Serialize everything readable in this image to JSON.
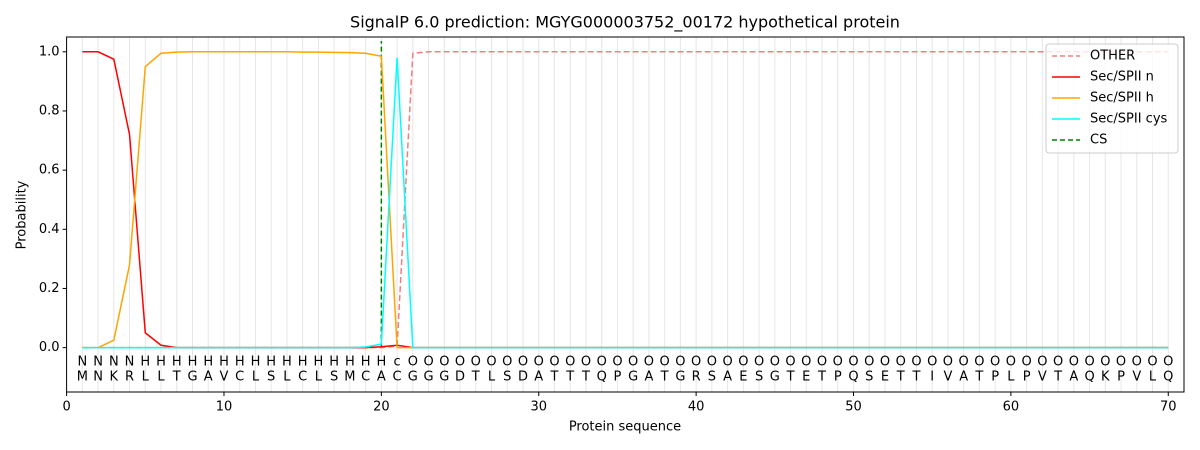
{
  "chart_data": {
    "type": "line",
    "title": "SignalP 6.0 prediction: MGYG000003752_00172 hypothetical protein",
    "x_label": "Protein sequence",
    "y_label": "Probability",
    "x": [
      1,
      2,
      3,
      4,
      5,
      6,
      7,
      8,
      9,
      10,
      11,
      12,
      13,
      14,
      15,
      16,
      17,
      18,
      19,
      20,
      21,
      22,
      23,
      24,
      25,
      26,
      27,
      28,
      29,
      30,
      31,
      32,
      33,
      34,
      35,
      36,
      37,
      38,
      39,
      40,
      41,
      42,
      43,
      44,
      45,
      46,
      47,
      48,
      49,
      50,
      51,
      52,
      53,
      54,
      55,
      56,
      57,
      58,
      59,
      60,
      61,
      62,
      63,
      64,
      65,
      66,
      67,
      68,
      69,
      70
    ],
    "sequence": [
      "M",
      "N",
      "K",
      "R",
      "L",
      "L",
      "T",
      "G",
      "A",
      "V",
      "C",
      "L",
      "S",
      "L",
      "C",
      "L",
      "S",
      "M",
      "C",
      "A",
      "C",
      "G",
      "G",
      "G",
      "D",
      "T",
      "L",
      "S",
      "D",
      "A",
      "T",
      "T",
      "T",
      "Q",
      "P",
      "G",
      "A",
      "T",
      "G",
      "R",
      "S",
      "A",
      "E",
      "S",
      "G",
      "T",
      "E",
      "T",
      "P",
      "Q",
      "S",
      "E",
      "T",
      "T",
      "I",
      "V",
      "A",
      "T",
      "P",
      "L",
      "P",
      "V",
      "T",
      "A",
      "Q",
      "K",
      "P",
      "V",
      "L",
      "Q"
    ],
    "residue_labels": [
      "N",
      "N",
      "N",
      "N",
      "H",
      "H",
      "H",
      "H",
      "H",
      "H",
      "H",
      "H",
      "H",
      "H",
      "H",
      "H",
      "H",
      "H",
      "H",
      "H",
      "c",
      "O",
      "O",
      "O",
      "O",
      "O",
      "O",
      "O",
      "O",
      "O",
      "O",
      "O",
      "O",
      "O",
      "O",
      "O",
      "O",
      "O",
      "O",
      "O",
      "O",
      "O",
      "O",
      "O",
      "O",
      "O",
      "O",
      "O",
      "O",
      "O",
      "O",
      "O",
      "O",
      "O",
      "O",
      "O",
      "O",
      "O",
      "O",
      "O",
      "O",
      "O",
      "O",
      "O",
      "O",
      "O",
      "O",
      "O",
      "O",
      "O"
    ],
    "label_colors": {
      "N": "#ff0000",
      "H": "#ffa500",
      "c": "#00ffff",
      "O": "#808080"
    },
    "series": [
      {
        "name": "OTHER",
        "color": "#f08080",
        "dash": true,
        "values": [
          0,
          0,
          0,
          0,
          0,
          0,
          0,
          0,
          0,
          0,
          0,
          0,
          0,
          0,
          0,
          0,
          0,
          0,
          0,
          0,
          0.005,
          0.995,
          1,
          1,
          1,
          1,
          1,
          1,
          1,
          1,
          1,
          1,
          1,
          1,
          1,
          1,
          1,
          1,
          1,
          1,
          1,
          1,
          1,
          1,
          1,
          1,
          1,
          1,
          1,
          1,
          1,
          1,
          1,
          1,
          1,
          1,
          1,
          1,
          1,
          1,
          1,
          1,
          1,
          1,
          1,
          1,
          1,
          1,
          1,
          1
        ]
      },
      {
        "name": "Sec/SPII n",
        "color": "#ff0000",
        "dash": false,
        "values": [
          1.0,
          1.0,
          0.975,
          0.72,
          0.05,
          0.008,
          0,
          0,
          0,
          0,
          0,
          0,
          0,
          0,
          0,
          0,
          0,
          0,
          0,
          0.003,
          0.008,
          0,
          0,
          0,
          0,
          0,
          0,
          0,
          0,
          0,
          0,
          0,
          0,
          0,
          0,
          0,
          0,
          0,
          0,
          0,
          0,
          0,
          0,
          0,
          0,
          0,
          0,
          0,
          0,
          0,
          0,
          0,
          0,
          0,
          0,
          0,
          0,
          0,
          0,
          0,
          0,
          0,
          0,
          0,
          0,
          0,
          0,
          0,
          0,
          0
        ]
      },
      {
        "name": "Sec/SPII h",
        "color": "#ffa500",
        "dash": false,
        "values": [
          0,
          0,
          0.025,
          0.28,
          0.95,
          0.995,
          0.999,
          1,
          1,
          1,
          1,
          1,
          1,
          1,
          0.999,
          0.999,
          0.998,
          0.997,
          0.995,
          0.985,
          0,
          0,
          0,
          0,
          0,
          0,
          0,
          0,
          0,
          0,
          0,
          0,
          0,
          0,
          0,
          0,
          0,
          0,
          0,
          0,
          0,
          0,
          0,
          0,
          0,
          0,
          0,
          0,
          0,
          0,
          0,
          0,
          0,
          0,
          0,
          0,
          0,
          0,
          0,
          0,
          0,
          0,
          0,
          0,
          0,
          0,
          0,
          0,
          0,
          0
        ]
      },
      {
        "name": "Sec/SPII cys",
        "color": "#00ffff",
        "dash": false,
        "values": [
          0,
          0,
          0,
          0,
          0,
          0,
          0,
          0,
          0,
          0,
          0,
          0,
          0,
          0,
          0,
          0,
          0,
          0,
          0.002,
          0.012,
          0.98,
          0,
          0,
          0,
          0,
          0,
          0,
          0,
          0,
          0,
          0,
          0,
          0,
          0,
          0,
          0,
          0,
          0,
          0,
          0,
          0,
          0,
          0,
          0,
          0,
          0,
          0,
          0,
          0,
          0,
          0,
          0,
          0,
          0,
          0,
          0,
          0,
          0,
          0,
          0,
          0,
          0,
          0,
          0,
          0,
          0,
          0,
          0,
          0,
          0
        ]
      }
    ],
    "cs": {
      "name": "CS",
      "color": "#008000",
      "x": 20
    },
    "xlim": [
      0,
      71
    ],
    "ylim": [
      -0.15,
      1.05
    ],
    "xticks": [
      0,
      10,
      20,
      30,
      40,
      50,
      60,
      70
    ],
    "yticks": [
      {
        "value": 0,
        "label": "0.0"
      },
      {
        "value": 0.2,
        "label": "0.2"
      },
      {
        "value": 0.4,
        "label": "0.4"
      },
      {
        "value": 0.6,
        "label": "0.6"
      },
      {
        "value": 0.8,
        "label": "0.8"
      },
      {
        "value": 1,
        "label": "1.0"
      }
    ],
    "grid": true,
    "legend": "upper right"
  }
}
